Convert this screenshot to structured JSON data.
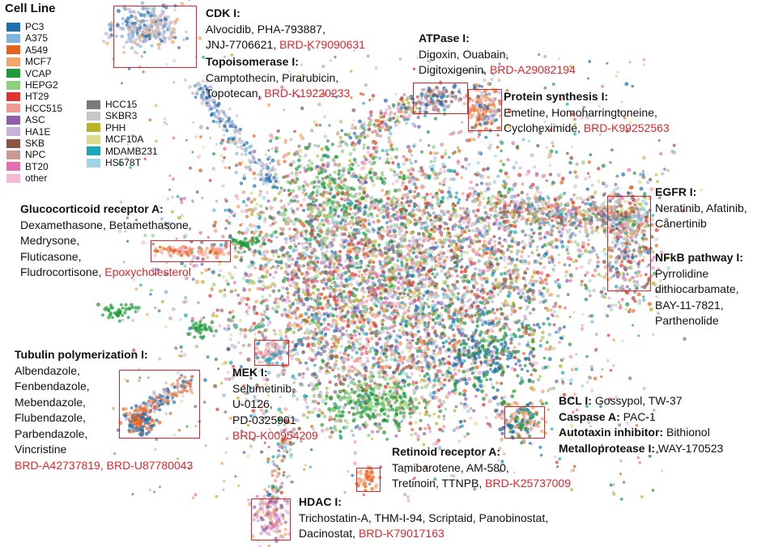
{
  "chart_data": {
    "type": "scatter",
    "legend": {
      "title": "Cell Line",
      "placement": "top-left",
      "entries": [
        {
          "name": "PC3",
          "color": "#1f6fb0"
        },
        {
          "name": "A375",
          "color": "#7fb2dd"
        },
        {
          "name": "A549",
          "color": "#e8611d"
        },
        {
          "name": "MCF7",
          "color": "#f3a46a"
        },
        {
          "name": "VCAP",
          "color": "#1e9b3a"
        },
        {
          "name": "HEPG2",
          "color": "#8fd07f"
        },
        {
          "name": "HT29",
          "color": "#e0332f"
        },
        {
          "name": "HCC515",
          "color": "#f39a96"
        },
        {
          "name": "ASC",
          "color": "#8e5fa8"
        },
        {
          "name": "HA1E",
          "color": "#c6b2d8"
        },
        {
          "name": "SKB",
          "color": "#8c5444"
        },
        {
          "name": "NPC",
          "color": "#c99b92"
        },
        {
          "name": "BT20",
          "color": "#e36fae"
        },
        {
          "name": "other",
          "color": "#f5b9d4"
        },
        {
          "name": "HCC15",
          "color": "#7a7a7a"
        },
        {
          "name": "SKBR3",
          "color": "#c7c7c7"
        },
        {
          "name": "PHH",
          "color": "#b9b423"
        },
        {
          "name": "MCF10A",
          "color": "#dcdc8c"
        },
        {
          "name": "MDAMB231",
          "color": "#1ba6b8"
        },
        {
          "name": "HS578T",
          "color": "#9ed6e3"
        }
      ]
    },
    "clusters": [
      {
        "title": "CDK I:",
        "drugs": [
          "Alvocidib, PHA-793887,",
          "JNJ-7706621,"
        ],
        "probe": "BRD-K79090631"
      },
      {
        "title": "Topoisomerase I:",
        "drugs": [
          "Camptothecin, Pirarubicin,",
          "Topotecan,"
        ],
        "probe": "BRD-K19220233"
      },
      {
        "title": "ATPase I:",
        "drugs": [
          "Digoxin, Ouabain,",
          "Digitoxigenin,"
        ],
        "probe": "BRD-A29082194"
      },
      {
        "title": "Protein synthesis I:",
        "drugs": [
          "Emetine, Homoharringtoneine,",
          "Cycloheximide,"
        ],
        "probe": "BRD-K99252563"
      },
      {
        "title": "EGFR I:",
        "drugs": [
          "Neratinib, Afatinib,",
          "Canertinib"
        ],
        "probe": ""
      },
      {
        "title": "NFkB pathway I:",
        "drugs": [
          "Pyrrolidine",
          "dithiocarbamate,",
          "BAY-11-7821,",
          "Parthenolide"
        ],
        "probe": ""
      },
      {
        "title": "Glucocorticoid receptor A:",
        "drugs": [
          "Dexamethasone, Betamethasone,",
          "Medrysone,",
          "Fluticasone,",
          "Fludrocortisone,"
        ],
        "probe": "Epoxycholesterol"
      },
      {
        "title": "Tubulin polymerization I:",
        "drugs": [
          "Albendazole,",
          "Fenbendazole,",
          "Mebendazole,",
          "Flubendazole,",
          "Parbendazole,",
          "Vincristine"
        ],
        "probe": "BRD-A42737819, BRD-U87780043"
      },
      {
        "title": "MEK I:",
        "drugs": [
          "Selumetinib,",
          "U-0126,",
          "PD-0325901"
        ],
        "probe": "BRD-K00954209"
      },
      {
        "title": "Retinoid receptor A:",
        "drugs": [
          "Tamibarotene, AM-580,",
          "Tretinoin, TTNPB,"
        ],
        "probe": "BRD-K25737009"
      },
      {
        "title": "HDAC I:",
        "drugs": [
          "Trichostatin-A, THM-I-94, Scriptaid, Panobinostat,",
          "Dacinostat,"
        ],
        "probe": "BRD-K79017163"
      }
    ],
    "bcl_group": [
      {
        "title": "BCL I:",
        "text": "Gossypol, TW-37"
      },
      {
        "title": "Caspase A:",
        "text": "PAC-1"
      },
      {
        "title": "Autotaxin inhibitor:",
        "text": "Bithionol"
      },
      {
        "title": "Metalloprotease I:",
        "text": "WAY-170523"
      }
    ]
  }
}
